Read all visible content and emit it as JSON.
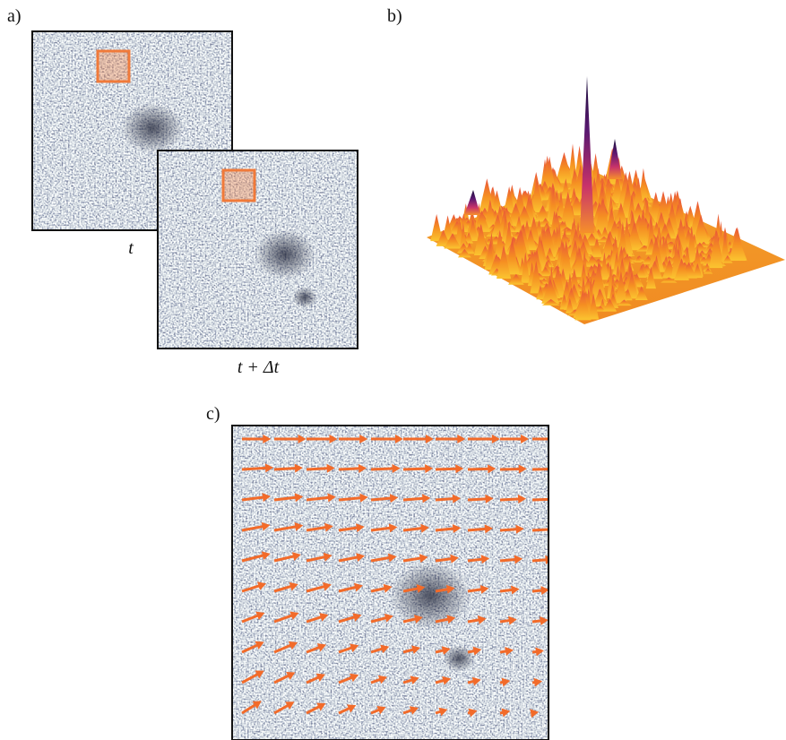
{
  "panels": [
    {
      "label": "a)",
      "captions": [
        "t",
        "t + Δt"
      ]
    },
    {
      "label": "b)"
    },
    {
      "label": "c)"
    }
  ]
}
